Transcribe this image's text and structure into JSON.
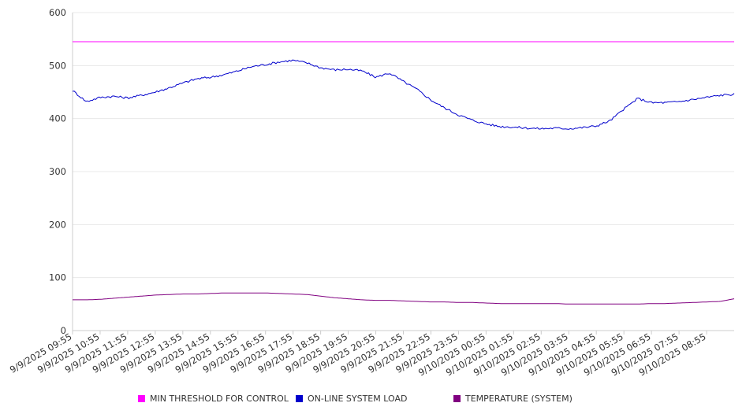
{
  "chart_data": {
    "type": "line",
    "title": "",
    "xlabel": "",
    "ylabel": "",
    "ylim": [
      0,
      600
    ],
    "yticks": [
      0,
      100,
      200,
      300,
      400,
      500,
      600
    ],
    "grid": true,
    "legend_position": "bottom",
    "x_tick_labels": [
      "9/9/2025 09:55",
      "9/9/2025 10:55",
      "9/9/2025 11:55",
      "9/9/2025 12:55",
      "9/9/2025 13:55",
      "9/9/2025 14:55",
      "9/9/2025 15:55",
      "9/9/2025 16:55",
      "9/9/2025 17:55",
      "9/9/2025 18:55",
      "9/9/2025 19:55",
      "9/9/2025 20:55",
      "9/9/2025 21:55",
      "9/9/2025 22:55",
      "9/9/2025 23:55",
      "9/10/2025 00:55",
      "9/10/2025 01:55",
      "9/10/2025 02:55",
      "9/10/2025 03:55",
      "9/10/2025 04:55",
      "9/10/2025 05:55",
      "9/10/2025 06:55",
      "9/10/2025 07:55",
      "9/10/2025 08:55"
    ],
    "x_hours": [
      0,
      0.5,
      1,
      1.5,
      2,
      2.5,
      3,
      3.5,
      4,
      4.5,
      5,
      5.5,
      6,
      6.5,
      7,
      7.5,
      8,
      8.5,
      9,
      9.5,
      10,
      10.5,
      11,
      11.5,
      12,
      12.5,
      13,
      13.5,
      14,
      14.5,
      15,
      15.5,
      16,
      16.5,
      17,
      17.5,
      18,
      18.5,
      19,
      19.5,
      20,
      20.5,
      21,
      21.5,
      22,
      22.5,
      23,
      23.5,
      24
    ],
    "series": [
      {
        "name": "MIN THRESHOLD FOR CONTROL",
        "color": "#ff00ff",
        "values": [
          545,
          545,
          545,
          545,
          545,
          545,
          545,
          545,
          545,
          545,
          545,
          545,
          545,
          545,
          545,
          545,
          545,
          545,
          545,
          545,
          545,
          545,
          545,
          545,
          545,
          545,
          545,
          545,
          545,
          545,
          545,
          545,
          545,
          545,
          545,
          545,
          545,
          545,
          545,
          545,
          545,
          545,
          545,
          545,
          545,
          545,
          545,
          545,
          545
        ]
      },
      {
        "name": "ON-LINE SYSTEM LOAD",
        "color": "#0000cc",
        "values": [
          453,
          432,
          440,
          442,
          439,
          444,
          450,
          458,
          467,
          475,
          478,
          483,
          490,
          498,
          502,
          507,
          510,
          505,
          496,
          492,
          493,
          490,
          478,
          486,
          470,
          455,
          435,
          420,
          407,
          397,
          390,
          385,
          384,
          382,
          381,
          382,
          381,
          383,
          386,
          396,
          418,
          438,
          430,
          430,
          432,
          436,
          440,
          444,
          446
        ]
      },
      {
        "name": "TEMPERATURE (SYSTEM)",
        "color": "#800080",
        "values": [
          58,
          58,
          59,
          61,
          63,
          65,
          67,
          68,
          69,
          69,
          70,
          71,
          71,
          71,
          71,
          70,
          69,
          68,
          65,
          62,
          60,
          58,
          57,
          57,
          56,
          55,
          54,
          54,
          53,
          53,
          52,
          51,
          51,
          51,
          51,
          51,
          50,
          50,
          50,
          50,
          50,
          50,
          51,
          51,
          52,
          53,
          54,
          55,
          60
        ]
      }
    ]
  }
}
